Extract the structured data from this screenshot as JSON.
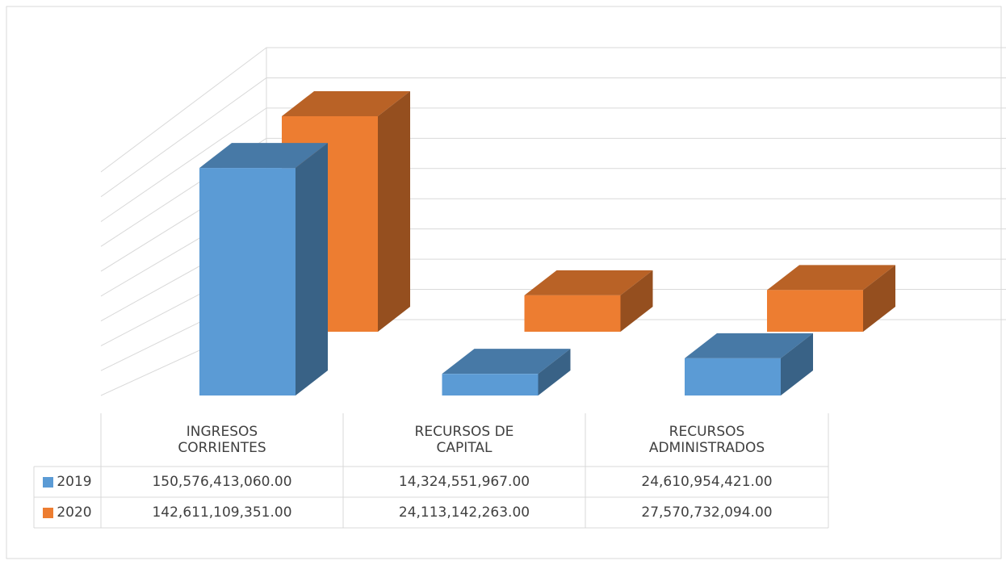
{
  "chart_data": {
    "type": "bar",
    "categories": [
      "INGRESOS CORRIENTES",
      "RECURSOS DE CAPITAL",
      "RECURSOS ADMINISTRADOS"
    ],
    "series": [
      {
        "name": "2019",
        "color": "#5b9bd5",
        "values": [
          150576413060.0,
          14324551967.0,
          24610954421.0
        ],
        "value_labels": [
          "150,576,413,060.00",
          "14,324,551,967.00",
          "24,610,954,421.00"
        ]
      },
      {
        "name": "2020",
        "color": "#ed7d31",
        "values": [
          142611109351.0,
          24113142263.0,
          27570732094.0
        ],
        "value_labels": [
          "142,611,109,351.00",
          "24,113,142,263.00",
          "27,570,732,094.00"
        ]
      }
    ],
    "ylim": [
      0,
      180000000000
    ],
    "yticks": [
      0,
      20000000000,
      40000000000,
      60000000000,
      80000000000,
      100000000000,
      120000000000,
      140000000000,
      160000000000,
      180000000000
    ],
    "grid": true,
    "legend": "table"
  }
}
